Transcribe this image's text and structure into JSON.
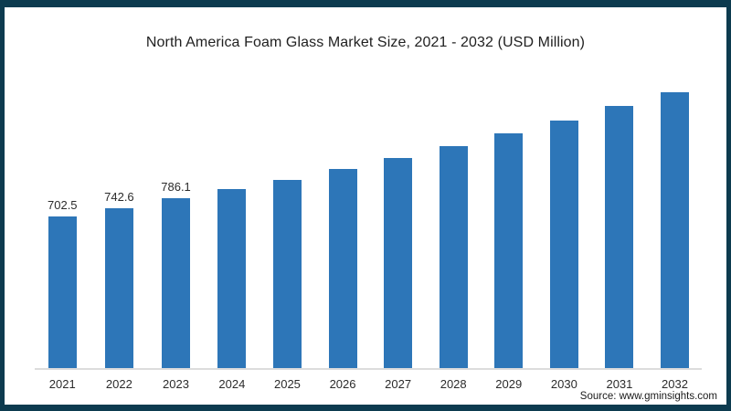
{
  "frame": {
    "border_color": "#0d3b4f",
    "background": "#ffffff"
  },
  "chart_data": {
    "type": "bar",
    "title": "North America Foam Glass Market Size, 2021 - 2032 (USD Million)",
    "categories": [
      "2021",
      "2022",
      "2023",
      "2024",
      "2025",
      "2026",
      "2027",
      "2028",
      "2029",
      "2030",
      "2031",
      "2032"
    ],
    "values": [
      702.5,
      742.6,
      786.1,
      829,
      874,
      921,
      975,
      1027,
      1086,
      1146,
      1212,
      1277
    ],
    "data_labels": [
      "702.5",
      "742.6",
      "786.1",
      "",
      "",
      "",
      "",
      "",
      "",
      "",
      "",
      ""
    ],
    "bar_color": "#2d76b8",
    "xlabel": "",
    "ylabel": "",
    "ylim": [
      0,
      1310
    ],
    "grid": false,
    "legend": "none"
  },
  "source": {
    "label": "Source: www.gminsights.com"
  }
}
